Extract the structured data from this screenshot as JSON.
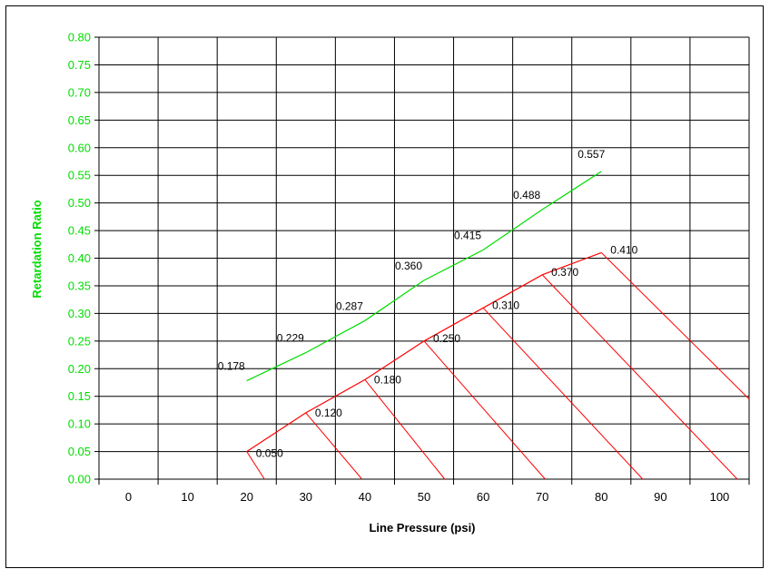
{
  "chart_data": {
    "type": "line",
    "xlabel": "Line Pressure (psi)",
    "ylabel": "Retardation Ratio",
    "xlim": [
      -5,
      105
    ],
    "ylim": [
      0,
      0.8
    ],
    "x_ticks": [
      "0",
      "10",
      "20",
      "30",
      "40",
      "50",
      "60",
      "70",
      "80",
      "90",
      "100"
    ],
    "y_ticks": [
      "0.00",
      "0.05",
      "0.10",
      "0.15",
      "0.20",
      "0.25",
      "0.30",
      "0.35",
      "0.40",
      "0.45",
      "0.50",
      "0.55",
      "0.60",
      "0.65",
      "0.70",
      "0.75",
      "0.80"
    ],
    "grid": true,
    "series": [
      {
        "color": "#00dd00",
        "x": [
          20,
          30,
          40,
          50,
          60,
          70,
          80
        ],
        "y": [
          0.178,
          0.229,
          0.287,
          0.36,
          0.415,
          0.488,
          0.557
        ],
        "labels": [
          "0.178",
          "0.229",
          "0.287",
          "0.360",
          "0.415",
          "0.488",
          "0.557"
        ]
      },
      {
        "color": "#ff0000",
        "x": [
          20,
          30,
          40,
          50,
          60,
          70,
          80
        ],
        "y": [
          0.05,
          0.12,
          0.18,
          0.25,
          0.31,
          0.37,
          0.41
        ],
        "labels": [
          "0.050",
          "0.120",
          "0.180",
          "0.250",
          "0.310",
          "0.370",
          "0.410"
        ]
      }
    ],
    "hatch_lines": [
      {
        "from": [
          20,
          0.05
        ],
        "to": [
          23,
          0.0
        ]
      },
      {
        "from": [
          30,
          0.12
        ],
        "to": [
          39.5,
          0.0
        ]
      },
      {
        "from": [
          40,
          0.18
        ],
        "to": [
          53.5,
          0.0
        ]
      },
      {
        "from": [
          50,
          0.25
        ],
        "to": [
          70.5,
          0.0
        ]
      },
      {
        "from": [
          60,
          0.31
        ],
        "to": [
          87,
          0.0
        ]
      },
      {
        "from": [
          70,
          0.37
        ],
        "to": [
          103,
          0.0
        ]
      },
      {
        "from": [
          80,
          0.41
        ],
        "to": [
          105,
          0.145
        ]
      }
    ],
    "colors": {
      "y_axis_text": "#00dd00",
      "green_line": "#00dd00",
      "red_line": "#ff0000"
    }
  }
}
